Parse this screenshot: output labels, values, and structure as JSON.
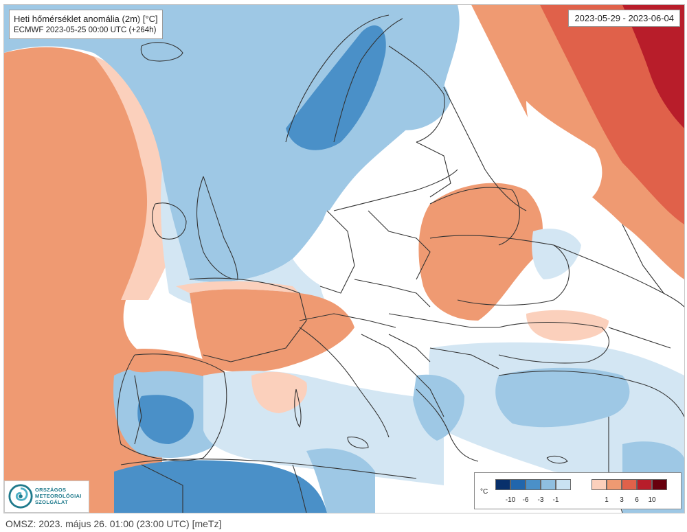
{
  "title": "Heti hőmérséklet anomália (2m) [°C]",
  "model_run": "ECMWF 2023-05-25 00:00 UTC (+264h)",
  "period": "2023-05-29 - 2023-06-04",
  "footer": "OMSZ: 2023. május 26. 01:00 (23:00 UTC) [meTz]",
  "logo": {
    "lines": [
      "ORSZÁGOS",
      "METEOROLÓGIAI",
      "SZOLGÁLAT"
    ],
    "color": "#1f7a8c"
  },
  "legend": {
    "unit": "°C",
    "negative_swatches": [
      "#08306b",
      "#2166ac",
      "#4a90c8",
      "#8fbfe0",
      "#c9e2f2"
    ],
    "positive_swatches": [
      "#fbd0bc",
      "#ef9a72",
      "#e0614a",
      "#b81d2a",
      "#67000d"
    ],
    "negative_ticks": [
      "-10",
      "-6",
      "-3",
      "-1"
    ],
    "positive_ticks": [
      "1",
      "3",
      "6",
      "10"
    ]
  },
  "colors": {
    "neutral": "#ffffff",
    "cool_light": "#d3e6f3",
    "cool_mid": "#9ec8e5",
    "cool_strong": "#4a90c8",
    "warm_light": "#fbd0bc",
    "warm_mid": "#ef9a72",
    "warm_strong": "#e0614a",
    "warm_extreme": "#b81d2a",
    "border_line": "#333333"
  }
}
